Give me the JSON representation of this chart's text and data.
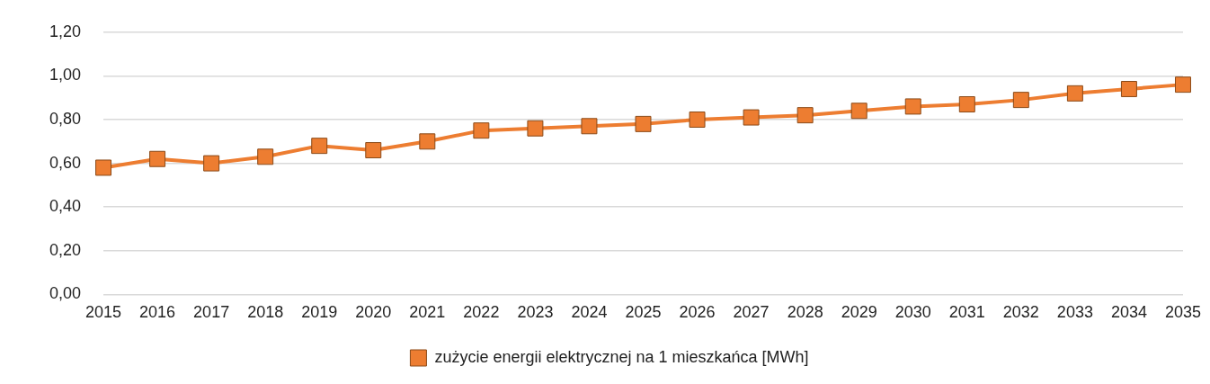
{
  "chart_data": {
    "type": "line",
    "categories": [
      "2015",
      "2016",
      "2017",
      "2018",
      "2019",
      "2020",
      "2021",
      "2022",
      "2023",
      "2024",
      "2025",
      "2026",
      "2027",
      "2028",
      "2029",
      "2030",
      "2031",
      "2032",
      "2033",
      "2034",
      "2035"
    ],
    "series": [
      {
        "name": "zużycie energii elektrycznej na 1 mieszkańca [MWh]",
        "color": "#ed7d31",
        "values": [
          0.58,
          0.62,
          0.6,
          0.63,
          0.68,
          0.66,
          0.7,
          0.75,
          0.76,
          0.77,
          0.78,
          0.8,
          0.81,
          0.82,
          0.84,
          0.86,
          0.87,
          0.89,
          0.92,
          0.94,
          0.96
        ]
      }
    ],
    "ylim": [
      0,
      1.2
    ],
    "yticks": [
      {
        "value": 0,
        "label": "0,00"
      },
      {
        "value": 0.2,
        "label": "0,20"
      },
      {
        "value": 0.4,
        "label": "0,40"
      },
      {
        "value": 0.6,
        "label": "0,60"
      },
      {
        "value": 0.8,
        "label": "0,80"
      },
      {
        "value": 1,
        "label": "1,00"
      },
      {
        "value": 1.2,
        "label": "1,20"
      }
    ],
    "grid": "y",
    "legend": "bottom",
    "marker": "square",
    "line_style": "solid"
  }
}
